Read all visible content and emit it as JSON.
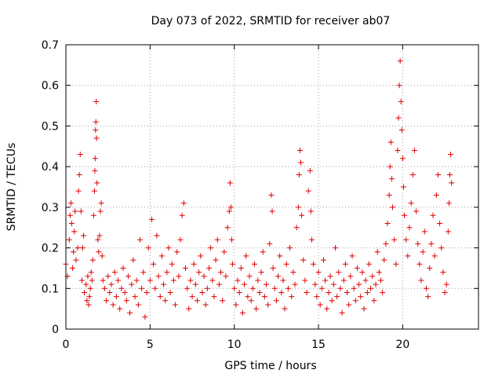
{
  "chart_data": {
    "type": "scatter",
    "title": "Day 073 of 2022, SRMTID for receiver ab07",
    "xlabel": "GPS time / hours",
    "ylabel": "SRMTID / TECUs",
    "xlim": [
      0,
      24.5
    ],
    "ylim": [
      0,
      0.7
    ],
    "xticks": [
      0,
      5,
      10,
      15,
      20
    ],
    "xtick_labels": [
      "0",
      "5",
      "10",
      "15",
      "20"
    ],
    "yticks": [
      0,
      0.1,
      0.2,
      0.3,
      0.4,
      0.5,
      0.6,
      0.7
    ],
    "ytick_labels": [
      "0",
      "0.1",
      "0.2",
      "0.3",
      "0.4",
      "0.5",
      "0.6",
      "0.7"
    ],
    "grid": true,
    "marker": "+",
    "color": "#e00000",
    "series": [
      {
        "name": "SRMTID",
        "points": [
          [
            0.0,
            0.16
          ],
          [
            0.1,
            0.13
          ],
          [
            0.2,
            0.22
          ],
          [
            0.25,
            0.28
          ],
          [
            0.3,
            0.31
          ],
          [
            0.35,
            0.26
          ],
          [
            0.4,
            0.15
          ],
          [
            0.45,
            0.19
          ],
          [
            0.5,
            0.24
          ],
          [
            0.55,
            0.29
          ],
          [
            0.6,
            0.17
          ],
          [
            0.7,
            0.2
          ],
          [
            0.75,
            0.34
          ],
          [
            0.8,
            0.38
          ],
          [
            0.85,
            0.43
          ],
          [
            0.9,
            0.29
          ],
          [
            0.95,
            0.12
          ],
          [
            1.0,
            0.2
          ],
          [
            1.05,
            0.23
          ],
          [
            1.1,
            0.09
          ],
          [
            1.2,
            0.11
          ],
          [
            1.25,
            0.07
          ],
          [
            1.3,
            0.13
          ],
          [
            1.35,
            0.06
          ],
          [
            1.4,
            0.08
          ],
          [
            1.45,
            0.1
          ],
          [
            1.5,
            0.14
          ],
          [
            1.55,
            0.12
          ],
          [
            1.6,
            0.17
          ],
          [
            1.65,
            0.28
          ],
          [
            1.7,
            0.34
          ],
          [
            1.72,
            0.39
          ],
          [
            1.74,
            0.42
          ],
          [
            1.76,
            0.49
          ],
          [
            1.78,
            0.51
          ],
          [
            1.8,
            0.56
          ],
          [
            1.82,
            0.47
          ],
          [
            1.85,
            0.36
          ],
          [
            1.9,
            0.22
          ],
          [
            1.95,
            0.19
          ],
          [
            2.0,
            0.23
          ],
          [
            2.05,
            0.29
          ],
          [
            2.1,
            0.31
          ],
          [
            2.15,
            0.18
          ],
          [
            2.2,
            0.12
          ],
          [
            2.3,
            0.1
          ],
          [
            2.4,
            0.07
          ],
          [
            2.5,
            0.13
          ],
          [
            2.6,
            0.09
          ],
          [
            2.7,
            0.11
          ],
          [
            2.8,
            0.06
          ],
          [
            2.9,
            0.14
          ],
          [
            3.0,
            0.08
          ],
          [
            3.1,
            0.12
          ],
          [
            3.2,
            0.05
          ],
          [
            3.3,
            0.1
          ],
          [
            3.4,
            0.15
          ],
          [
            3.5,
            0.09
          ],
          [
            3.6,
            0.07
          ],
          [
            3.7,
            0.13
          ],
          [
            3.8,
            0.04
          ],
          [
            3.9,
            0.11
          ],
          [
            4.0,
            0.17
          ],
          [
            4.1,
            0.08
          ],
          [
            4.2,
            0.12
          ],
          [
            4.3,
            0.06
          ],
          [
            4.4,
            0.22
          ],
          [
            4.5,
            0.1
          ],
          [
            4.6,
            0.14
          ],
          [
            4.7,
            0.03
          ],
          [
            4.8,
            0.09
          ],
          [
            4.9,
            0.2
          ],
          [
            5.0,
            0.12
          ],
          [
            5.1,
            0.27
          ],
          [
            5.2,
            0.16
          ],
          [
            5.3,
            0.1
          ],
          [
            5.4,
            0.23
          ],
          [
            5.5,
            0.13
          ],
          [
            5.6,
            0.08
          ],
          [
            5.7,
            0.18
          ],
          [
            5.8,
            0.11
          ],
          [
            5.9,
            0.07
          ],
          [
            6.0,
            0.14
          ],
          [
            6.1,
            0.2
          ],
          [
            6.2,
            0.09
          ],
          [
            6.3,
            0.16
          ],
          [
            6.4,
            0.12
          ],
          [
            6.5,
            0.06
          ],
          [
            6.6,
            0.19
          ],
          [
            6.7,
            0.13
          ],
          [
            6.8,
            0.22
          ],
          [
            6.9,
            0.28
          ],
          [
            7.0,
            0.31
          ],
          [
            7.1,
            0.15
          ],
          [
            7.2,
            0.1
          ],
          [
            7.3,
            0.05
          ],
          [
            7.4,
            0.12
          ],
          [
            7.5,
            0.08
          ],
          [
            7.6,
            0.16
          ],
          [
            7.7,
            0.11
          ],
          [
            7.8,
            0.07
          ],
          [
            7.9,
            0.14
          ],
          [
            8.0,
            0.18
          ],
          [
            8.1,
            0.09
          ],
          [
            8.2,
            0.13
          ],
          [
            8.3,
            0.06
          ],
          [
            8.4,
            0.1
          ],
          [
            8.5,
            0.15
          ],
          [
            8.6,
            0.2
          ],
          [
            8.7,
            0.12
          ],
          [
            8.8,
            0.08
          ],
          [
            8.9,
            0.17
          ],
          [
            9.0,
            0.22
          ],
          [
            9.1,
            0.11
          ],
          [
            9.2,
            0.14
          ],
          [
            9.3,
            0.07
          ],
          [
            9.4,
            0.19
          ],
          [
            9.5,
            0.13
          ],
          [
            9.6,
            0.25
          ],
          [
            9.7,
            0.29
          ],
          [
            9.75,
            0.36
          ],
          [
            9.8,
            0.3
          ],
          [
            9.85,
            0.22
          ],
          [
            9.9,
            0.16
          ],
          [
            10.0,
            0.1
          ],
          [
            10.1,
            0.06
          ],
          [
            10.2,
            0.12
          ],
          [
            10.3,
            0.09
          ],
          [
            10.4,
            0.15
          ],
          [
            10.5,
            0.04
          ],
          [
            10.6,
            0.11
          ],
          [
            10.7,
            0.18
          ],
          [
            10.8,
            0.08
          ],
          [
            10.9,
            0.13
          ],
          [
            11.0,
            0.07
          ],
          [
            11.1,
            0.1
          ],
          [
            11.2,
            0.16
          ],
          [
            11.3,
            0.05
          ],
          [
            11.4,
            0.12
          ],
          [
            11.5,
            0.09
          ],
          [
            11.6,
            0.14
          ],
          [
            11.7,
            0.19
          ],
          [
            11.8,
            0.08
          ],
          [
            11.9,
            0.11
          ],
          [
            12.0,
            0.06
          ],
          [
            12.1,
            0.21
          ],
          [
            12.2,
            0.33
          ],
          [
            12.25,
            0.29
          ],
          [
            12.3,
            0.15
          ],
          [
            12.4,
            0.1
          ],
          [
            12.5,
            0.07
          ],
          [
            12.6,
            0.13
          ],
          [
            12.7,
            0.18
          ],
          [
            12.8,
            0.09
          ],
          [
            12.9,
            0.12
          ],
          [
            13.0,
            0.05
          ],
          [
            13.1,
            0.16
          ],
          [
            13.2,
            0.1
          ],
          [
            13.3,
            0.2
          ],
          [
            13.4,
            0.08
          ],
          [
            13.5,
            0.14
          ],
          [
            13.6,
            0.11
          ],
          [
            13.7,
            0.25
          ],
          [
            13.8,
            0.3
          ],
          [
            13.85,
            0.38
          ],
          [
            13.9,
            0.44
          ],
          [
            13.95,
            0.41
          ],
          [
            14.0,
            0.28
          ],
          [
            14.1,
            0.17
          ],
          [
            14.2,
            0.12
          ],
          [
            14.3,
            0.09
          ],
          [
            14.4,
            0.34
          ],
          [
            14.5,
            0.39
          ],
          [
            14.55,
            0.29
          ],
          [
            14.6,
            0.22
          ],
          [
            14.7,
            0.16
          ],
          [
            14.8,
            0.11
          ],
          [
            14.9,
            0.08
          ],
          [
            15.0,
            0.14
          ],
          [
            15.1,
            0.06
          ],
          [
            15.2,
            0.1
          ],
          [
            15.3,
            0.17
          ],
          [
            15.4,
            0.12
          ],
          [
            15.5,
            0.05
          ],
          [
            15.6,
            0.09
          ],
          [
            15.7,
            0.13
          ],
          [
            15.8,
            0.07
          ],
          [
            15.9,
            0.11
          ],
          [
            16.0,
            0.2
          ],
          [
            16.1,
            0.08
          ],
          [
            16.2,
            0.14
          ],
          [
            16.3,
            0.1
          ],
          [
            16.4,
            0.04
          ],
          [
            16.5,
            0.12
          ],
          [
            16.6,
            0.16
          ],
          [
            16.7,
            0.09
          ],
          [
            16.8,
            0.06
          ],
          [
            16.9,
            0.13
          ],
          [
            17.0,
            0.18
          ],
          [
            17.1,
            0.1
          ],
          [
            17.2,
            0.07
          ],
          [
            17.3,
            0.15
          ],
          [
            17.4,
            0.11
          ],
          [
            17.5,
            0.08
          ],
          [
            17.6,
            0.14
          ],
          [
            17.7,
            0.05
          ],
          [
            17.8,
            0.12
          ],
          [
            17.9,
            0.09
          ],
          [
            18.0,
            0.16
          ],
          [
            18.1,
            0.1
          ],
          [
            18.2,
            0.13
          ],
          [
            18.3,
            0.07
          ],
          [
            18.4,
            0.11
          ],
          [
            18.5,
            0.19
          ],
          [
            18.6,
            0.14
          ],
          [
            18.7,
            0.12
          ],
          [
            18.8,
            0.09
          ],
          [
            18.9,
            0.17
          ],
          [
            19.0,
            0.21
          ],
          [
            19.1,
            0.26
          ],
          [
            19.2,
            0.33
          ],
          [
            19.25,
            0.4
          ],
          [
            19.3,
            0.46
          ],
          [
            19.35,
            0.37
          ],
          [
            19.4,
            0.3
          ],
          [
            19.5,
            0.22
          ],
          [
            19.6,
            0.16
          ],
          [
            19.7,
            0.44
          ],
          [
            19.75,
            0.52
          ],
          [
            19.8,
            0.6
          ],
          [
            19.85,
            0.66
          ],
          [
            19.9,
            0.56
          ],
          [
            19.95,
            0.49
          ],
          [
            20.0,
            0.42
          ],
          [
            20.05,
            0.35
          ],
          [
            20.1,
            0.28
          ],
          [
            20.2,
            0.22
          ],
          [
            20.3,
            0.18
          ],
          [
            20.4,
            0.25
          ],
          [
            20.5,
            0.31
          ],
          [
            20.6,
            0.38
          ],
          [
            20.7,
            0.44
          ],
          [
            20.8,
            0.29
          ],
          [
            20.9,
            0.21
          ],
          [
            21.0,
            0.16
          ],
          [
            21.1,
            0.12
          ],
          [
            21.2,
            0.19
          ],
          [
            21.3,
            0.24
          ],
          [
            21.4,
            0.1
          ],
          [
            21.5,
            0.08
          ],
          [
            21.6,
            0.15
          ],
          [
            21.7,
            0.21
          ],
          [
            21.8,
            0.28
          ],
          [
            21.9,
            0.18
          ],
          [
            22.0,
            0.33
          ],
          [
            22.1,
            0.38
          ],
          [
            22.2,
            0.26
          ],
          [
            22.3,
            0.2
          ],
          [
            22.4,
            0.14
          ],
          [
            22.5,
            0.09
          ],
          [
            22.6,
            0.11
          ],
          [
            22.7,
            0.24
          ],
          [
            22.75,
            0.31
          ],
          [
            22.8,
            0.38
          ],
          [
            22.85,
            0.43
          ],
          [
            22.9,
            0.36
          ]
        ]
      }
    ]
  }
}
